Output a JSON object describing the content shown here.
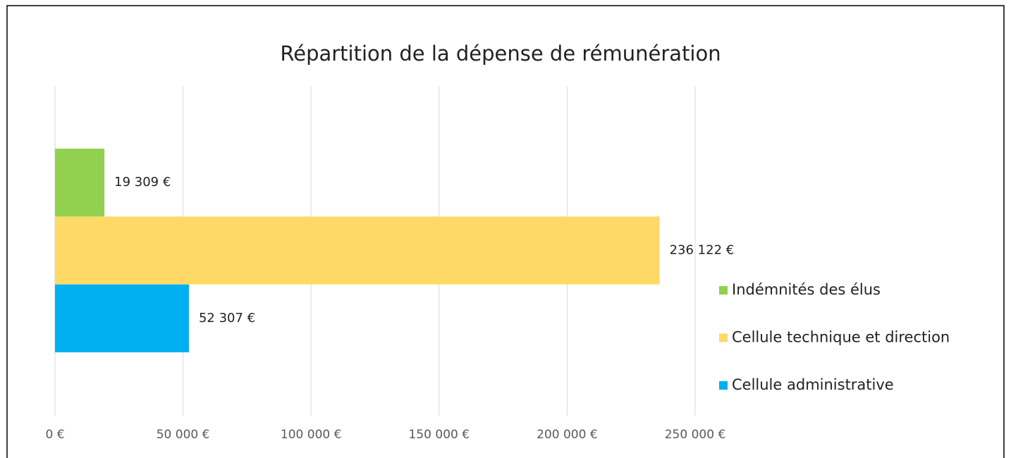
{
  "chart_data": {
    "type": "bar",
    "orientation": "horizontal",
    "title": "Répartition de la dépense de rémunération",
    "categories": [
      null
    ],
    "series": [
      {
        "name": "Indémnités des élus",
        "color": "#92d050",
        "values": [
          19309
        ],
        "value_labels": [
          "19 309 €"
        ]
      },
      {
        "name": "Cellule technique et direction",
        "color": "#ffd966",
        "values": [
          236122
        ],
        "value_labels": [
          "236 122 €"
        ]
      },
      {
        "name": "Cellule administrative",
        "color": "#00b0f0",
        "values": [
          52307
        ],
        "value_labels": [
          "52 307 €"
        ]
      }
    ],
    "xlim": [
      0,
      250000
    ],
    "xticks": [
      {
        "value": 0,
        "label": "0 €"
      },
      {
        "value": 50000,
        "label": "50 000 €"
      },
      {
        "value": 100000,
        "label": "100 000 €"
      },
      {
        "value": 150000,
        "label": "150 000 €"
      },
      {
        "value": 200000,
        "label": "200 000 €"
      },
      {
        "value": 250000,
        "label": "250 000 €"
      }
    ],
    "grid": true,
    "legend": "right"
  }
}
